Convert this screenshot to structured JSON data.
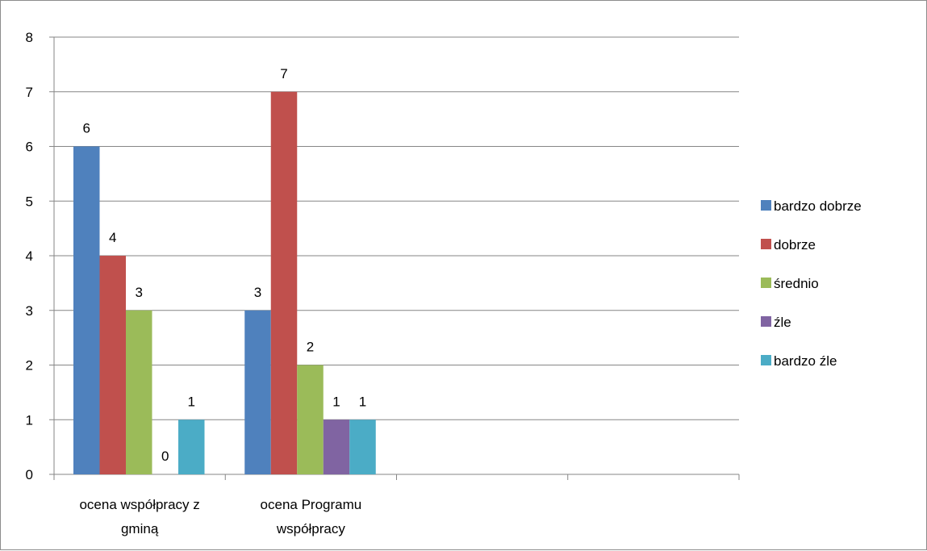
{
  "chart_data": {
    "type": "bar",
    "categories": [
      [
        "ocena współpracy z",
        "gminą"
      ],
      [
        "ocena Programu",
        "współpracy"
      ],
      [],
      []
    ],
    "series": [
      {
        "name": "bardzo dobrze",
        "color": "#4F81BD",
        "values": [
          6,
          3,
          null,
          null
        ]
      },
      {
        "name": "dobrze",
        "color": "#C0504D",
        "values": [
          4,
          7,
          null,
          null
        ]
      },
      {
        "name": "średnio",
        "color": "#9BBB59",
        "values": [
          3,
          2,
          null,
          null
        ]
      },
      {
        "name": "źle",
        "color": "#8064A2",
        "values": [
          0,
          1,
          null,
          null
        ]
      },
      {
        "name": "bardzo źle",
        "color": "#4BACC6",
        "values": [
          1,
          1,
          null,
          null
        ]
      }
    ],
    "ylim": [
      0,
      8
    ],
    "yticks": [
      0,
      1,
      2,
      3,
      4,
      5,
      6,
      7,
      8
    ],
    "grid": true,
    "legend_position": "right",
    "data_labels": true
  }
}
